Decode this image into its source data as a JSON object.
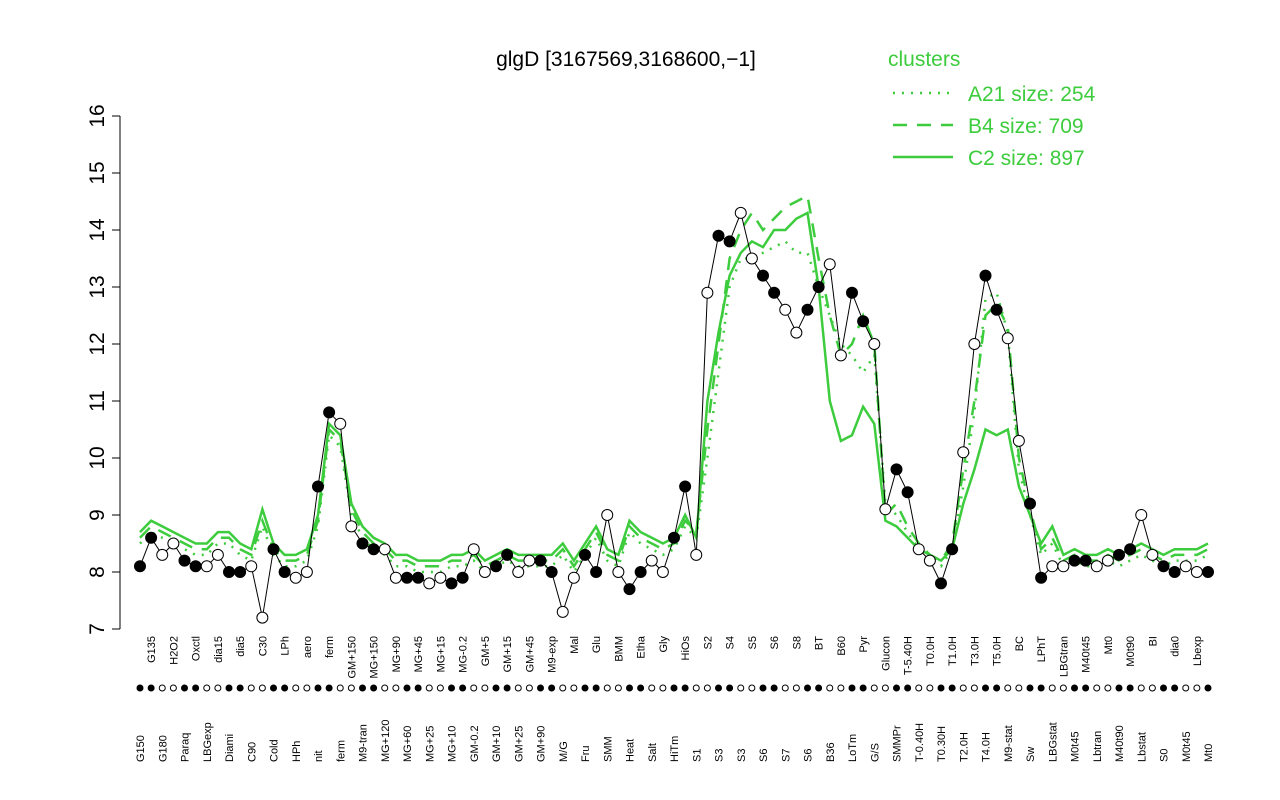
{
  "chart_data": {
    "type": "line",
    "title": "glgD [3167569,3168600,−1]",
    "legend_title": "clusters",
    "legend_position": "top-right",
    "categories": [
      "G150",
      "G135",
      "G180",
      "H2O2",
      "Paraq",
      "Oxctl",
      "LBGexp",
      "dia15",
      "Diami",
      "dia5",
      "C90",
      "C30",
      "Cold",
      "LPh",
      "HPh",
      "aero",
      "nit",
      "ferm",
      "ferm",
      "GM+150",
      "M9-tran",
      "MG+150",
      "MG+120",
      "MG+90",
      "MG+60",
      "MG+45",
      "MG+25",
      "MG+15",
      "MG+10",
      "MG-0.2",
      "GM-0.2",
      "GM+5",
      "GM+10",
      "GM+15",
      "GM+25",
      "GM+45",
      "GM+90",
      "M9-exp",
      "M/G",
      "Mal",
      "Fru",
      "Glu",
      "SMM",
      "BMM",
      "Heat",
      "Etha",
      "Salt",
      "Gly",
      "HiTm",
      "HiOs",
      "S1",
      "S2",
      "S3",
      "S4",
      "S3",
      "S5",
      "S6",
      "S6",
      "S7",
      "S8",
      "S6",
      "BT",
      "B36",
      "B60",
      "LoTm",
      "Pyr",
      "G/S",
      "Glucon",
      "SMMPr",
      "T-5.40H",
      "T-0.40H",
      "T0.0H",
      "T0.30H",
      "T1.0H",
      "T2.0H",
      "T3.0H",
      "T4.0H",
      "T5.0H",
      "M9-stat",
      "BC",
      "Sw",
      "LPhT",
      "LBGstat",
      "LBGtran",
      "M0t45",
      "M40t45",
      "Lbtran",
      "Mt0",
      "M40t90",
      "M0t90",
      "Lbstat",
      "BI",
      "S0",
      "dia0",
      "M0t45",
      "Lbexp",
      "Mt0"
    ],
    "values": [
      8.1,
      8.6,
      8.3,
      8.5,
      8.2,
      8.1,
      8.1,
      8.3,
      8.0,
      8.0,
      8.1,
      7.2,
      8.4,
      8.0,
      7.9,
      8.0,
      9.5,
      10.8,
      10.6,
      8.8,
      8.5,
      8.4,
      8.4,
      7.9,
      7.9,
      7.9,
      7.8,
      7.9,
      7.8,
      7.9,
      8.4,
      8.0,
      8.1,
      8.3,
      8.0,
      8.2,
      8.2,
      8.0,
      7.3,
      7.9,
      8.3,
      8.0,
      9.0,
      8.0,
      7.7,
      8.0,
      8.2,
      8.0,
      8.6,
      9.5,
      8.3,
      12.9,
      13.9,
      13.8,
      14.3,
      13.5,
      13.2,
      12.9,
      12.6,
      12.2,
      12.6,
      13.0,
      13.4,
      11.8,
      12.9,
      12.4,
      12.0,
      9.1,
      9.8,
      9.4,
      8.4,
      8.2,
      7.8,
      8.4,
      10.1,
      12.0,
      13.2,
      12.6,
      12.1,
      10.3,
      9.2,
      7.9,
      8.1,
      8.1,
      8.2,
      8.2,
      8.1,
      8.2,
      8.3,
      8.4,
      9.0,
      8.3,
      8.1,
      8.0,
      8.1,
      8.0,
      8.0
    ],
    "color": "#000000",
    "series": [
      {
        "name": "A21 size: 254",
        "color": "#3dcc3d",
        "dash": "dotted",
        "values": [
          8.5,
          8.7,
          8.6,
          8.5,
          8.4,
          8.3,
          8.3,
          8.5,
          8.5,
          8.3,
          8.2,
          8.8,
          8.3,
          8.1,
          8.1,
          8.2,
          8.8,
          10.4,
          10.2,
          9.0,
          8.6,
          8.4,
          8.3,
          8.1,
          8.1,
          8.0,
          8.0,
          8.0,
          8.1,
          8.1,
          8.2,
          8.0,
          8.1,
          8.2,
          8.1,
          8.1,
          8.1,
          8.1,
          8.3,
          8.0,
          8.3,
          8.6,
          8.2,
          8.1,
          8.7,
          8.5,
          8.4,
          8.3,
          8.4,
          8.8,
          8.6,
          10.0,
          11.5,
          13.0,
          13.5,
          13.5,
          13.6,
          13.7,
          13.8,
          13.6,
          13.6,
          13.0,
          12.5,
          12.0,
          11.8,
          11.5,
          11.8,
          9.2,
          9.0,
          8.7,
          8.4,
          8.2,
          8.1,
          8.4,
          9.5,
          10.8,
          12.8,
          12.9,
          12.2,
          9.8,
          9.0,
          8.3,
          8.5,
          8.1,
          8.2,
          8.1,
          8.1,
          8.2,
          8.1,
          8.2,
          8.3,
          8.2,
          8.1,
          8.2,
          8.2,
          8.2,
          8.3
        ]
      },
      {
        "name": "B4 size: 709",
        "color": "#3dcc3d",
        "dash": "dashed",
        "values": [
          8.6,
          8.8,
          8.7,
          8.6,
          8.5,
          8.4,
          8.4,
          8.6,
          8.6,
          8.4,
          8.3,
          8.9,
          8.4,
          8.2,
          8.2,
          8.3,
          8.9,
          10.5,
          10.3,
          9.1,
          8.7,
          8.5,
          8.4,
          8.2,
          8.2,
          8.1,
          8.1,
          8.1,
          8.2,
          8.2,
          8.3,
          8.1,
          8.2,
          8.3,
          8.2,
          8.2,
          8.2,
          8.2,
          8.4,
          8.1,
          8.4,
          8.7,
          8.3,
          8.2,
          8.8,
          8.6,
          8.5,
          8.4,
          8.5,
          8.9,
          8.7,
          10.5,
          12.0,
          13.5,
          14.0,
          14.3,
          14.0,
          14.2,
          14.4,
          14.5,
          14.6,
          13.5,
          12.5,
          11.8,
          12.0,
          12.5,
          12.0,
          9.0,
          9.2,
          8.8,
          8.5,
          8.3,
          8.2,
          8.5,
          9.8,
          11.0,
          12.5,
          12.7,
          12.3,
          10.0,
          9.1,
          8.4,
          8.6,
          8.2,
          8.3,
          8.2,
          8.2,
          8.3,
          8.2,
          8.3,
          8.4,
          8.3,
          8.2,
          8.3,
          8.3,
          8.3,
          8.4
        ]
      },
      {
        "name": "C2 size: 897",
        "color": "#3dcc3d",
        "dash": "solid",
        "values": [
          8.7,
          8.9,
          8.8,
          8.7,
          8.6,
          8.5,
          8.5,
          8.7,
          8.7,
          8.5,
          8.4,
          9.1,
          8.5,
          8.3,
          8.3,
          8.4,
          9.0,
          10.6,
          10.4,
          9.2,
          8.8,
          8.6,
          8.5,
          8.3,
          8.3,
          8.2,
          8.2,
          8.2,
          8.3,
          8.3,
          8.4,
          8.2,
          8.3,
          8.4,
          8.3,
          8.3,
          8.3,
          8.3,
          8.5,
          8.2,
          8.5,
          8.8,
          8.4,
          8.3,
          8.9,
          8.7,
          8.6,
          8.5,
          8.6,
          9.0,
          8.6,
          11.0,
          12.2,
          13.2,
          13.6,
          13.8,
          13.7,
          14.0,
          14.0,
          14.2,
          14.3,
          13.0,
          11.0,
          10.3,
          10.4,
          10.9,
          10.6,
          8.9,
          8.8,
          8.6,
          8.4,
          8.3,
          8.2,
          8.4,
          9.2,
          9.8,
          10.5,
          10.4,
          10.5,
          9.5,
          9.0,
          8.5,
          8.8,
          8.3,
          8.4,
          8.3,
          8.3,
          8.4,
          8.3,
          8.4,
          8.5,
          8.4,
          8.3,
          8.4,
          8.4,
          8.4,
          8.5
        ]
      }
    ],
    "ylim": [
      7,
      16
    ],
    "yticks": [
      7,
      8,
      9,
      10,
      11,
      12,
      13,
      14,
      15,
      16
    ],
    "grid": false
  }
}
